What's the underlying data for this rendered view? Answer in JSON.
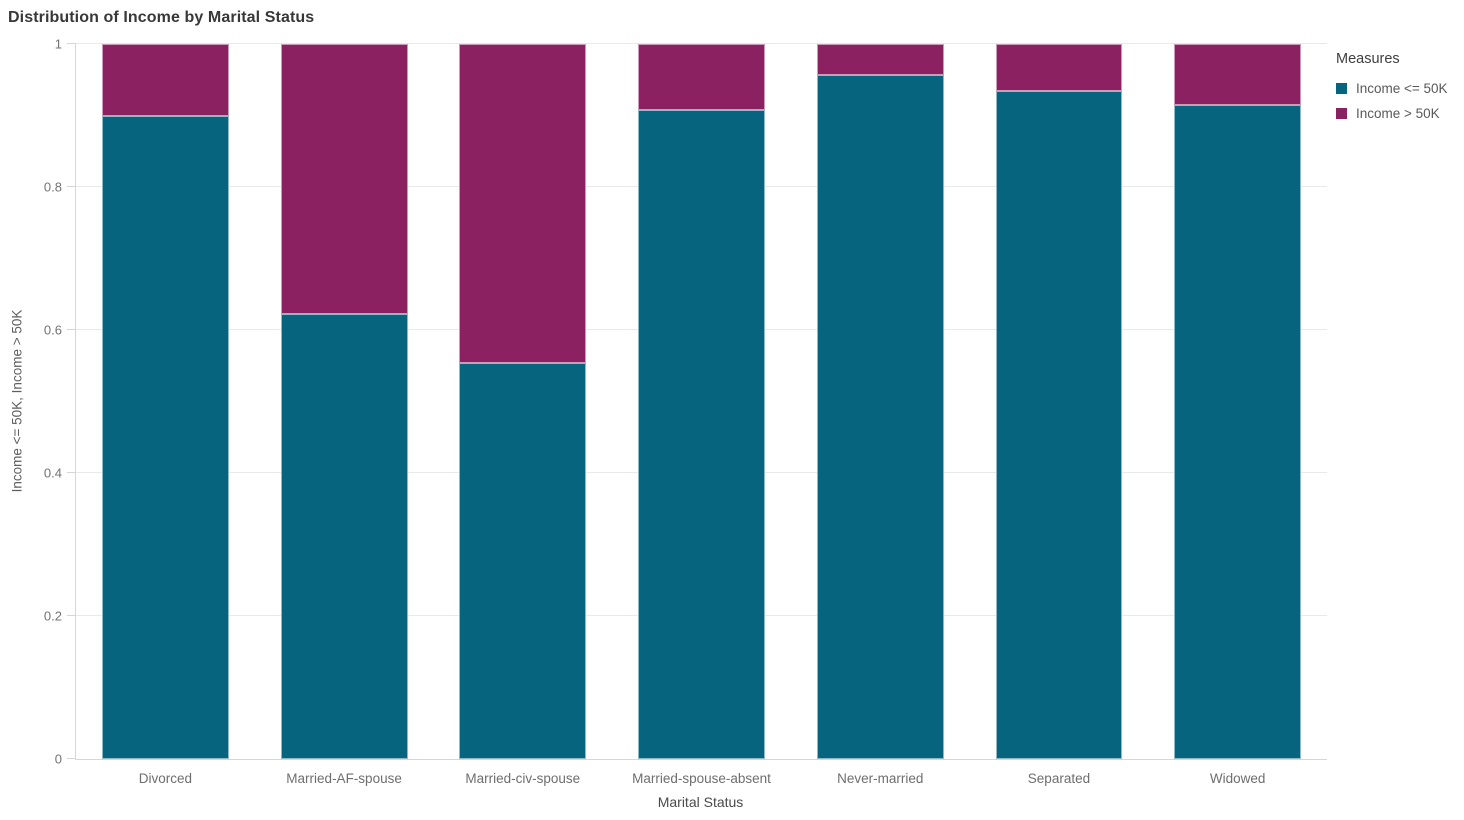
{
  "title": "Distribution of Income by Marital Status",
  "legend": {
    "title": "Measures",
    "items": [
      {
        "label": "Income <= 50K",
        "color": "#06647F"
      },
      {
        "label": "Income > 50K",
        "color": "#8C2162"
      }
    ]
  },
  "axes": {
    "x_title": "Marital Status",
    "y_title": "Income <= 50K, Income > 50K"
  },
  "colors": {
    "series_teal": "#06647F",
    "series_magenta": "#8C2162",
    "gridline": "#e9e9e9",
    "axis_line": "#d6d6d6",
    "tick_text": "#737373",
    "title_text": "#383838"
  },
  "chart_data": {
    "type": "bar",
    "stacked": true,
    "normalized": true,
    "title": "Distribution of Income by Marital Status",
    "xlabel": "Marital Status",
    "ylabel": "Income <= 50K, Income > 50K",
    "categories": [
      "Divorced",
      "Married-AF-spouse",
      "Married-civ-spouse",
      "Married-spouse-absent",
      "Never-married",
      "Separated",
      "Widowed"
    ],
    "series": [
      {
        "name": "Income <= 50K",
        "color": "#06647F",
        "values": [
          0.9,
          0.622,
          0.554,
          0.908,
          0.956,
          0.934,
          0.915
        ]
      },
      {
        "name": "Income > 50K",
        "color": "#8C2162",
        "values": [
          0.1,
          0.378,
          0.446,
          0.092,
          0.044,
          0.066,
          0.085
        ]
      }
    ],
    "ylim": [
      0,
      1
    ],
    "yticks": [
      0,
      0.2,
      0.4,
      0.6,
      0.8,
      1
    ],
    "ytick_labels": [
      "0",
      "0.2",
      "0.4",
      "0.6",
      "0.8",
      "1"
    ],
    "grid": true,
    "legend_position": "top-right",
    "legend_title": "Measures"
  }
}
